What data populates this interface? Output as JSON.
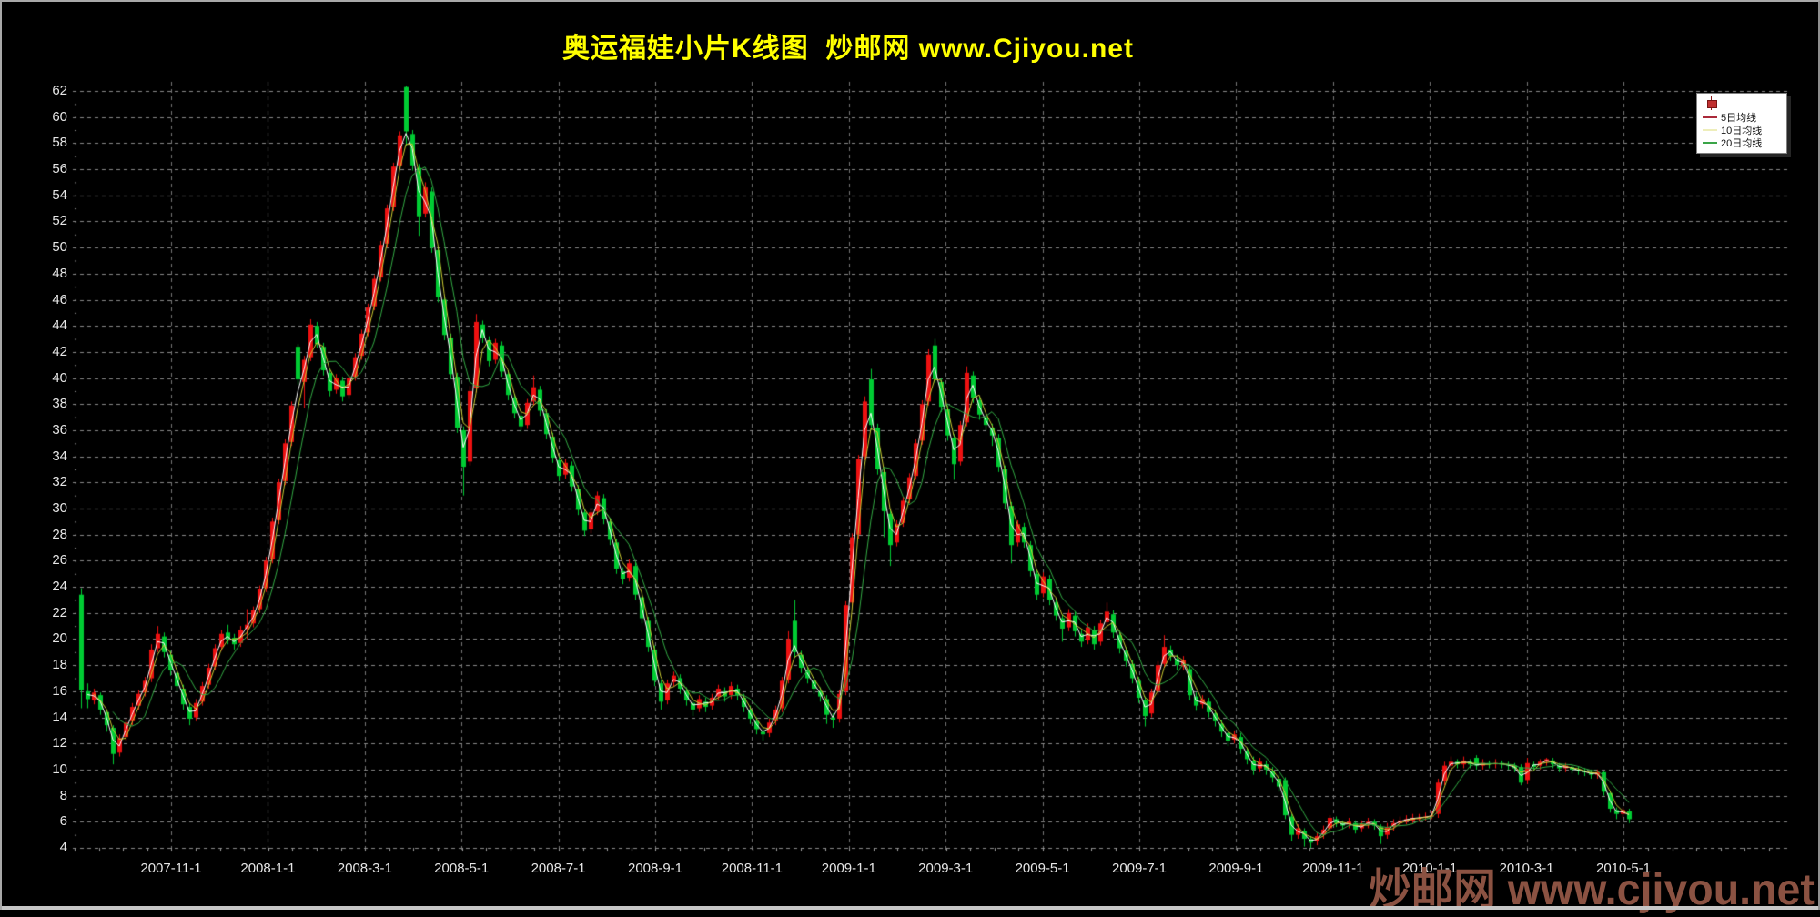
{
  "title": {
    "text": "奥运福娃小片K线图  炒邮网 www.Cjiyou.net",
    "color": "#ffff00"
  },
  "watermark": {
    "text": "炒邮网 www.cjiyou.net",
    "color": "#8b5242"
  },
  "legend": {
    "icon": "red-candlestick-icon",
    "items": [
      {
        "label": "5日均线",
        "color": "#aa2a3a"
      },
      {
        "label": "10日均线",
        "color": "#eeeebb"
      },
      {
        "label": "20日均线",
        "color": "#3aa548"
      }
    ]
  },
  "chart_data": {
    "type": "candlestick",
    "title": "奥运福娃小片K线图 炒邮网 www.Cjiyou.net",
    "xlabel": "",
    "ylabel": "",
    "ylim": [
      4,
      62
    ],
    "y_tick_step": 2,
    "grid": "dashed",
    "legend_position": "top-right",
    "background": "#000000",
    "up_color": "#ee1111",
    "down_color": "#00cc33",
    "grid_color": "#8a8a8a",
    "x_tick_labels": [
      "2007-11-1",
      "2008-1-1",
      "2008-3-1",
      "2008-5-1",
      "2008-7-1",
      "2008-9-1",
      "2008-11-1",
      "2009-1-1",
      "2009-3-1",
      "2009-5-1",
      "2009-7-1",
      "2009-9-1",
      "2009-11-1",
      "2010-1-1",
      "2010-3-1",
      "2010-5-1"
    ],
    "moving_averages": [
      {
        "name": "5日均线",
        "color": "#ffffff",
        "window": 2
      },
      {
        "name": "10日均线",
        "color": "#cccc33",
        "window": 3
      },
      {
        "name": "20日均线",
        "color": "#33aa44",
        "window": 6
      }
    ],
    "series_encoding": "[open, high, low, close]",
    "candles": [
      [
        23.4,
        23.9,
        14.7,
        16.1
      ],
      [
        16.0,
        16.6,
        14.7,
        15.4
      ],
      [
        15.3,
        16.2,
        15.0,
        15.9
      ],
      [
        15.7,
        15.9,
        14.2,
        14.6
      ],
      [
        14.4,
        14.6,
        12.9,
        13.4
      ],
      [
        13.2,
        13.4,
        10.4,
        11.2
      ],
      [
        11.3,
        12.7,
        11.0,
        12.4
      ],
      [
        12.5,
        13.9,
        12.2,
        13.6
      ],
      [
        13.7,
        15.1,
        13.4,
        14.8
      ],
      [
        14.9,
        16.1,
        14.6,
        15.8
      ],
      [
        15.9,
        17.1,
        15.6,
        16.8
      ],
      [
        17.0,
        19.6,
        16.7,
        19.2
      ],
      [
        19.3,
        21.0,
        19.0,
        20.4
      ],
      [
        20.2,
        20.5,
        18.6,
        19.0
      ],
      [
        18.8,
        19.1,
        17.2,
        17.6
      ],
      [
        17.4,
        17.7,
        16.0,
        16.4
      ],
      [
        16.2,
        16.5,
        14.6,
        15.0
      ],
      [
        14.8,
        15.1,
        13.4,
        13.9
      ],
      [
        14.0,
        15.4,
        13.7,
        15.1
      ],
      [
        15.2,
        16.7,
        14.9,
        16.4
      ],
      [
        16.5,
        18.1,
        16.2,
        17.8
      ],
      [
        17.9,
        19.6,
        17.6,
        19.3
      ],
      [
        19.4,
        20.7,
        19.1,
        20.4
      ],
      [
        20.5,
        21.1,
        19.6,
        20.0
      ],
      [
        20.1,
        20.4,
        19.2,
        19.6
      ],
      [
        19.7,
        21.0,
        19.4,
        20.7
      ],
      [
        20.8,
        22.3,
        20.0,
        21.1
      ],
      [
        21.2,
        22.5,
        20.9,
        22.2
      ],
      [
        22.3,
        24.1,
        22.0,
        23.8
      ],
      [
        23.9,
        26.3,
        23.6,
        26.0
      ],
      [
        26.1,
        29.3,
        25.8,
        29.0
      ],
      [
        29.1,
        32.3,
        28.8,
        32.0
      ],
      [
        32.1,
        35.3,
        31.8,
        35.0
      ],
      [
        35.1,
        38.2,
        34.8,
        37.9
      ],
      [
        42.4,
        42.6,
        39.5,
        39.9
      ],
      [
        39.7,
        41.7,
        37.7,
        41.4
      ],
      [
        41.6,
        44.5,
        41.3,
        44.1
      ],
      [
        44.0,
        44.3,
        42.3,
        42.6
      ],
      [
        42.4,
        42.7,
        40.2,
        40.6
      ],
      [
        40.4,
        40.7,
        38.6,
        39.0
      ],
      [
        39.1,
        40.3,
        38.8,
        40.0
      ],
      [
        39.8,
        40.1,
        38.2,
        38.6
      ],
      [
        38.7,
        40.3,
        38.4,
        40.0
      ],
      [
        40.1,
        41.9,
        39.8,
        41.6
      ],
      [
        41.7,
        43.7,
        41.4,
        43.4
      ],
      [
        43.5,
        45.7,
        43.2,
        45.4
      ],
      [
        45.5,
        47.9,
        45.2,
        47.6
      ],
      [
        47.7,
        50.5,
        47.4,
        50.2
      ],
      [
        50.3,
        53.3,
        50.0,
        53.0
      ],
      [
        53.1,
        56.5,
        52.8,
        56.2
      ],
      [
        56.3,
        58.9,
        56.0,
        58.6
      ],
      [
        62.3,
        62.4,
        57.8,
        58.9
      ],
      [
        58.7,
        59.0,
        55.9,
        56.3
      ],
      [
        56.1,
        56.4,
        50.9,
        52.4
      ],
      [
        52.6,
        55.0,
        52.3,
        54.6
      ],
      [
        54.3,
        54.6,
        49.6,
        50.0
      ],
      [
        49.8,
        50.1,
        45.8,
        46.2
      ],
      [
        46.0,
        46.3,
        42.9,
        43.3
      ],
      [
        43.1,
        43.4,
        39.9,
        40.3
      ],
      [
        40.1,
        40.4,
        35.8,
        36.2
      ],
      [
        36.0,
        36.3,
        31.0,
        33.2
      ],
      [
        33.6,
        39.4,
        33.3,
        39.0
      ],
      [
        39.2,
        44.9,
        38.9,
        44.3
      ],
      [
        44.1,
        44.4,
        42.7,
        43.1
      ],
      [
        42.9,
        43.2,
        40.9,
        41.3
      ],
      [
        41.4,
        43.0,
        41.1,
        42.7
      ],
      [
        42.5,
        42.8,
        40.1,
        40.5
      ],
      [
        40.3,
        40.6,
        38.3,
        38.7
      ],
      [
        38.5,
        38.8,
        36.9,
        37.3
      ],
      [
        37.1,
        37.4,
        35.9,
        36.3
      ],
      [
        36.4,
        38.4,
        36.1,
        38.1
      ],
      [
        38.2,
        40.2,
        37.9,
        39.3
      ],
      [
        39.1,
        39.4,
        37.1,
        37.5
      ],
      [
        37.3,
        37.6,
        35.3,
        35.7
      ],
      [
        35.5,
        35.8,
        33.5,
        33.9
      ],
      [
        33.7,
        34.0,
        32.1,
        32.5
      ],
      [
        32.6,
        33.8,
        32.3,
        33.5
      ],
      [
        33.3,
        33.6,
        31.3,
        31.7
      ],
      [
        31.5,
        31.8,
        29.5,
        29.9
      ],
      [
        29.7,
        30.0,
        27.9,
        28.3
      ],
      [
        28.4,
        30.0,
        28.1,
        29.7
      ],
      [
        29.8,
        31.3,
        29.5,
        31.0
      ],
      [
        30.8,
        31.1,
        28.8,
        29.2
      ],
      [
        29.0,
        29.3,
        27.2,
        27.6
      ],
      [
        27.4,
        27.7,
        25.0,
        25.4
      ],
      [
        25.2,
        25.5,
        24.2,
        24.6
      ],
      [
        24.7,
        26.1,
        24.4,
        25.8
      ],
      [
        25.6,
        25.9,
        23.0,
        23.4
      ],
      [
        23.2,
        23.5,
        21.2,
        21.6
      ],
      [
        21.4,
        21.7,
        19.0,
        19.4
      ],
      [
        19.2,
        19.5,
        16.4,
        16.8
      ],
      [
        16.6,
        16.9,
        14.6,
        15.2
      ],
      [
        15.3,
        16.9,
        15.0,
        16.6
      ],
      [
        16.7,
        17.5,
        16.4,
        17.2
      ],
      [
        17.0,
        17.3,
        15.8,
        16.2
      ],
      [
        16.0,
        16.3,
        14.9,
        15.3
      ],
      [
        15.1,
        15.4,
        14.1,
        14.6
      ],
      [
        14.7,
        15.7,
        14.4,
        15.4
      ],
      [
        15.2,
        15.5,
        14.4,
        14.8
      ],
      [
        14.9,
        15.8,
        14.6,
        15.5
      ],
      [
        15.6,
        16.5,
        15.3,
        16.2
      ],
      [
        16.0,
        16.3,
        15.2,
        15.6
      ],
      [
        15.7,
        16.7,
        15.4,
        16.4
      ],
      [
        16.2,
        16.5,
        15.3,
        15.7
      ],
      [
        15.5,
        15.8,
        14.4,
        14.8
      ],
      [
        14.6,
        14.9,
        13.5,
        13.9
      ],
      [
        13.7,
        14.0,
        12.7,
        13.1
      ],
      [
        12.9,
        13.2,
        12.2,
        12.7
      ],
      [
        12.8,
        13.9,
        12.5,
        13.6
      ],
      [
        13.7,
        14.9,
        13.4,
        14.6
      ],
      [
        14.7,
        17.1,
        14.4,
        16.8
      ],
      [
        16.9,
        20.6,
        16.6,
        20.0
      ],
      [
        21.4,
        23.0,
        18.6,
        19.0
      ],
      [
        18.8,
        19.1,
        17.4,
        17.8
      ],
      [
        17.6,
        17.9,
        16.6,
        17.0
      ],
      [
        16.8,
        17.1,
        15.8,
        16.2
      ],
      [
        16.0,
        16.3,
        15.2,
        15.6
      ],
      [
        15.4,
        15.7,
        13.5,
        14.2
      ],
      [
        14.0,
        14.3,
        13.2,
        13.8
      ],
      [
        13.9,
        16.1,
        13.6,
        15.8
      ],
      [
        16.0,
        22.9,
        15.7,
        22.6
      ],
      [
        22.8,
        28.1,
        22.5,
        27.8
      ],
      [
        28.0,
        34.1,
        27.7,
        33.8
      ],
      [
        34.0,
        38.6,
        33.7,
        38.2
      ],
      [
        39.9,
        40.7,
        36.0,
        36.4
      ],
      [
        36.2,
        36.5,
        32.6,
        33.0
      ],
      [
        32.8,
        33.1,
        27.8,
        29.8
      ],
      [
        29.6,
        29.9,
        25.6,
        27.2
      ],
      [
        27.4,
        29.1,
        27.1,
        28.8
      ],
      [
        28.9,
        30.9,
        28.6,
        30.6
      ],
      [
        30.7,
        32.7,
        30.4,
        32.4
      ],
      [
        32.5,
        35.3,
        32.2,
        35.0
      ],
      [
        35.2,
        38.3,
        34.9,
        38.0
      ],
      [
        38.2,
        42.2,
        37.9,
        41.8
      ],
      [
        42.5,
        43.0,
        39.6,
        39.9
      ],
      [
        39.7,
        40.0,
        37.4,
        37.8
      ],
      [
        37.6,
        37.9,
        35.2,
        35.6
      ],
      [
        35.4,
        35.7,
        32.2,
        33.4
      ],
      [
        33.6,
        36.7,
        33.3,
        36.4
      ],
      [
        36.6,
        40.9,
        36.3,
        40.4
      ],
      [
        40.2,
        40.5,
        38.1,
        38.5
      ],
      [
        38.3,
        38.6,
        36.8,
        37.2
      ],
      [
        37.0,
        37.3,
        36.0,
        36.4
      ],
      [
        36.2,
        36.5,
        34.8,
        35.6
      ],
      [
        35.4,
        35.7,
        32.8,
        33.2
      ],
      [
        33.0,
        33.3,
        30.0,
        30.4
      ],
      [
        30.2,
        30.5,
        25.8,
        27.2
      ],
      [
        27.4,
        29.1,
        27.1,
        28.8
      ],
      [
        28.6,
        28.9,
        27.0,
        27.4
      ],
      [
        27.2,
        27.5,
        24.8,
        25.2
      ],
      [
        25.0,
        25.3,
        23.0,
        23.4
      ],
      [
        23.5,
        25.1,
        23.2,
        24.8
      ],
      [
        24.6,
        24.9,
        22.6,
        23.0
      ],
      [
        22.8,
        23.1,
        21.4,
        21.8
      ],
      [
        21.6,
        21.9,
        19.8,
        20.8
      ],
      [
        20.9,
        22.3,
        20.6,
        22.0
      ],
      [
        21.8,
        22.1,
        20.2,
        20.6
      ],
      [
        20.4,
        20.7,
        19.4,
        19.8
      ],
      [
        19.9,
        21.2,
        19.6,
        20.9
      ],
      [
        20.7,
        21.0,
        19.2,
        19.6
      ],
      [
        19.8,
        21.5,
        19.5,
        21.2
      ],
      [
        21.3,
        22.8,
        21.0,
        22.1
      ],
      [
        21.9,
        22.2,
        20.1,
        20.5
      ],
      [
        20.3,
        20.6,
        18.9,
        19.3
      ],
      [
        19.1,
        19.4,
        17.9,
        18.3
      ],
      [
        18.1,
        18.4,
        16.6,
        17.0
      ],
      [
        16.8,
        17.1,
        15.1,
        15.5
      ],
      [
        15.3,
        15.6,
        13.3,
        14.1
      ],
      [
        14.3,
        16.2,
        14.0,
        15.9
      ],
      [
        16.0,
        18.3,
        15.7,
        18.0
      ],
      [
        18.1,
        20.3,
        17.8,
        19.4
      ],
      [
        19.2,
        19.5,
        18.3,
        18.7
      ],
      [
        18.5,
        18.8,
        17.6,
        18.0
      ],
      [
        17.9,
        18.7,
        17.6,
        18.4
      ],
      [
        17.7,
        18.0,
        15.3,
        15.7
      ],
      [
        15.6,
        15.9,
        14.5,
        14.9
      ],
      [
        15.0,
        15.7,
        14.7,
        15.4
      ],
      [
        15.2,
        15.5,
        14.0,
        14.4
      ],
      [
        14.3,
        14.6,
        13.3,
        13.7
      ],
      [
        13.5,
        13.8,
        12.5,
        12.9
      ],
      [
        12.8,
        13.1,
        11.8,
        12.2
      ],
      [
        12.3,
        13.0,
        12.0,
        12.7
      ],
      [
        12.5,
        12.8,
        11.2,
        11.6
      ],
      [
        11.4,
        11.7,
        10.4,
        10.8
      ],
      [
        10.7,
        11.0,
        9.6,
        10.0
      ],
      [
        10.1,
        10.9,
        9.8,
        10.6
      ],
      [
        10.4,
        10.7,
        9.6,
        10.0
      ],
      [
        9.9,
        10.2,
        9.0,
        9.4
      ],
      [
        9.3,
        9.6,
        8.3,
        8.7
      ],
      [
        9.2,
        9.4,
        6.2,
        6.5
      ],
      [
        6.4,
        6.6,
        4.5,
        5.0
      ],
      [
        5.0,
        5.8,
        4.7,
        5.5
      ],
      [
        5.3,
        5.5,
        4.1,
        4.7
      ],
      [
        4.7,
        4.9,
        4.0,
        4.4
      ],
      [
        4.5,
        5.2,
        4.2,
        4.9
      ],
      [
        5.0,
        5.7,
        4.7,
        5.4
      ],
      [
        5.5,
        6.5,
        5.2,
        6.3
      ],
      [
        6.2,
        6.4,
        5.6,
        5.9
      ],
      [
        5.9,
        6.1,
        5.4,
        5.7
      ],
      [
        5.8,
        6.3,
        5.5,
        6.0
      ],
      [
        5.9,
        6.1,
        5.1,
        5.4
      ],
      [
        5.5,
        6.1,
        5.2,
        5.8
      ],
      [
        5.8,
        6.3,
        5.5,
        6.0
      ],
      [
        6.0,
        6.2,
        5.4,
        5.7
      ],
      [
        5.6,
        5.8,
        4.3,
        4.9
      ],
      [
        5.0,
        5.9,
        4.7,
        5.6
      ],
      [
        5.6,
        6.2,
        5.3,
        5.9
      ],
      [
        5.9,
        6.4,
        5.6,
        6.1
      ],
      [
        6.0,
        6.5,
        5.8,
        6.2
      ],
      [
        6.1,
        6.6,
        5.9,
        6.3
      ],
      [
        6.2,
        6.6,
        6.0,
        6.3
      ],
      [
        6.3,
        6.7,
        6.1,
        6.4
      ],
      [
        6.4,
        6.8,
        6.2,
        6.5
      ],
      [
        6.6,
        9.3,
        6.3,
        9.0
      ],
      [
        9.1,
        10.6,
        8.8,
        10.3
      ],
      [
        10.3,
        11.0,
        10.0,
        10.6
      ],
      [
        10.6,
        10.8,
        10.1,
        10.4
      ],
      [
        10.4,
        11.0,
        10.1,
        10.7
      ],
      [
        10.6,
        10.8,
        10.1,
        10.4
      ],
      [
        10.9,
        11.1,
        10.0,
        10.3
      ],
      [
        10.3,
        10.8,
        10.0,
        10.5
      ],
      [
        10.5,
        10.7,
        10.1,
        10.4
      ],
      [
        10.4,
        10.8,
        10.1,
        10.5
      ],
      [
        10.5,
        10.7,
        10.1,
        10.4
      ],
      [
        10.4,
        10.6,
        10.0,
        10.3
      ],
      [
        10.3,
        10.5,
        9.8,
        10.1
      ],
      [
        10.2,
        10.4,
        8.8,
        9.0
      ],
      [
        9.2,
        10.9,
        8.9,
        10.5
      ],
      [
        10.4,
        10.6,
        9.9,
        10.2
      ],
      [
        10.3,
        10.8,
        10.0,
        10.6
      ],
      [
        10.6,
        10.9,
        10.3,
        10.8
      ],
      [
        10.7,
        10.9,
        10.1,
        10.4
      ],
      [
        10.3,
        10.5,
        9.8,
        10.1
      ],
      [
        10.1,
        10.5,
        9.8,
        10.3
      ],
      [
        10.2,
        10.4,
        9.7,
        10.0
      ],
      [
        10.0,
        10.2,
        9.6,
        9.9
      ],
      [
        9.9,
        10.1,
        9.5,
        9.8
      ],
      [
        9.8,
        10.0,
        9.3,
        9.6
      ],
      [
        9.6,
        10.0,
        9.3,
        9.8
      ],
      [
        9.8,
        9.9,
        8.0,
        8.3
      ],
      [
        8.2,
        8.4,
        6.7,
        7.0
      ],
      [
        6.9,
        7.1,
        6.2,
        6.6
      ],
      [
        6.6,
        7.1,
        6.3,
        6.9
      ],
      [
        6.8,
        7.0,
        5.9,
        6.2
      ]
    ]
  }
}
